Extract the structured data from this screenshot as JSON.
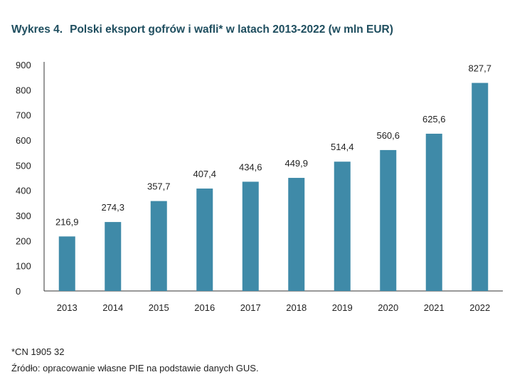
{
  "title": {
    "number": "Wykres 4.",
    "text": "Polski eksport gofrów i wafli* w latach 2013-2022 (w mln EUR)"
  },
  "chart_data": {
    "type": "bar",
    "categories": [
      "2013",
      "2014",
      "2015",
      "2016",
      "2017",
      "2018",
      "2019",
      "2020",
      "2021",
      "2022"
    ],
    "values": [
      216.9,
      274.3,
      357.7,
      407.4,
      434.6,
      449.9,
      514.4,
      560.6,
      625.6,
      827.7
    ],
    "value_labels": [
      "216,9",
      "274,3",
      "357,7",
      "407,4",
      "434,6",
      "449,9",
      "514,4",
      "560,6",
      "625,6",
      "827,7"
    ],
    "ylim": [
      0,
      900
    ],
    "yticks": [
      "0",
      "100",
      "200",
      "300",
      "400",
      "500",
      "600",
      "700",
      "800",
      "900"
    ],
    "bar_color": "#3f8aa8",
    "grid": false,
    "legend": "none"
  },
  "footnotes": {
    "cn": "*CN 1905 32",
    "source": "Źródło: opracowanie własne PIE na podstawie danych GUS."
  }
}
